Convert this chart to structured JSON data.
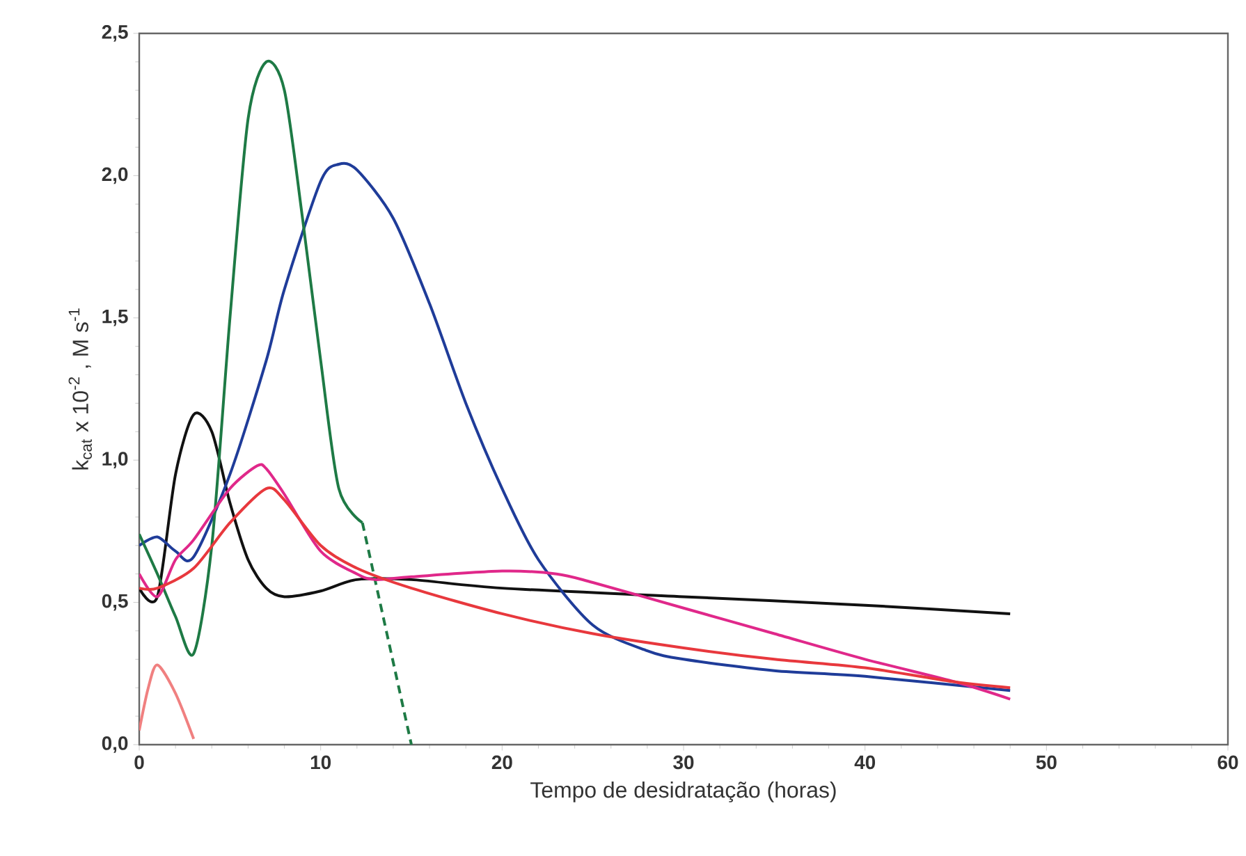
{
  "chart_data": {
    "type": "line",
    "xlabel": "Tempo de desidratação (horas)",
    "ylabel": "k$_{cat}$  x 10$^{-2}$ , M s$^{-1}$",
    "xlim": [
      0,
      60
    ],
    "ylim": [
      0,
      2.5
    ],
    "xticks": [
      0,
      10,
      20,
      30,
      40,
      50,
      60
    ],
    "yticks": [
      {
        "value": 0,
        "label": "0,0"
      },
      {
        "value": 0.5,
        "label": "0,5"
      },
      {
        "value": 1,
        "label": "1,0"
      },
      {
        "value": 1.5,
        "label": "1,5"
      },
      {
        "value": 2,
        "label": "2,0"
      },
      {
        "value": 2.5,
        "label": "2,5"
      }
    ],
    "series": [
      {
        "color": "#111111",
        "x": [
          0,
          1,
          2,
          3,
          4,
          5,
          6,
          7,
          8,
          10,
          12,
          15,
          20,
          30,
          40,
          48
        ],
        "values": [
          0.55,
          0.52,
          0.95,
          1.16,
          1.1,
          0.85,
          0.65,
          0.55,
          0.52,
          0.54,
          0.58,
          0.58,
          0.55,
          0.52,
          0.49,
          0.46
        ]
      },
      {
        "color": "#1f3c99",
        "x": [
          0,
          1,
          2,
          3,
          5,
          7,
          8,
          10,
          11,
          12,
          14,
          16,
          18,
          20,
          22,
          25,
          28,
          30,
          35,
          40,
          48
        ],
        "values": [
          0.7,
          0.73,
          0.68,
          0.66,
          0.95,
          1.35,
          1.6,
          1.98,
          2.04,
          2.02,
          1.85,
          1.55,
          1.2,
          0.9,
          0.65,
          0.42,
          0.33,
          0.3,
          0.26,
          0.24,
          0.19
        ]
      },
      {
        "color": "#1e7a45",
        "x": [
          0,
          1,
          2,
          3,
          4,
          5,
          6,
          7,
          8,
          9,
          10,
          11,
          12.3
        ],
        "values": [
          0.74,
          0.6,
          0.45,
          0.32,
          0.7,
          1.5,
          2.2,
          2.4,
          2.3,
          1.85,
          1.35,
          0.9,
          0.78
        ]
      },
      {
        "color": "#1e7a45",
        "line_style": "dashed",
        "x": [
          12.3,
          15
        ],
        "values": [
          0.78,
          0.0
        ]
      },
      {
        "color": "#e0288a",
        "x": [
          0,
          1,
          2,
          3,
          5,
          6.5,
          7,
          8,
          10,
          12,
          13,
          15,
          20,
          23,
          25,
          30,
          35,
          40,
          45,
          48
        ],
        "values": [
          0.6,
          0.52,
          0.65,
          0.72,
          0.9,
          0.98,
          0.97,
          0.88,
          0.68,
          0.6,
          0.58,
          0.59,
          0.61,
          0.6,
          0.57,
          0.48,
          0.39,
          0.3,
          0.22,
          0.16
        ]
      },
      {
        "color": "#e8383d",
        "x": [
          0,
          1,
          3,
          5,
          7,
          8,
          10,
          12,
          15,
          20,
          25,
          30,
          35,
          40,
          45,
          48
        ],
        "values": [
          0.55,
          0.55,
          0.62,
          0.78,
          0.9,
          0.86,
          0.7,
          0.62,
          0.55,
          0.46,
          0.39,
          0.34,
          0.3,
          0.27,
          0.22,
          0.2
        ]
      },
      {
        "color": "#f08080",
        "x": [
          0,
          0.5,
          1,
          2,
          3
        ],
        "values": [
          0.05,
          0.2,
          0.28,
          0.18,
          0.02
        ]
      }
    ]
  }
}
